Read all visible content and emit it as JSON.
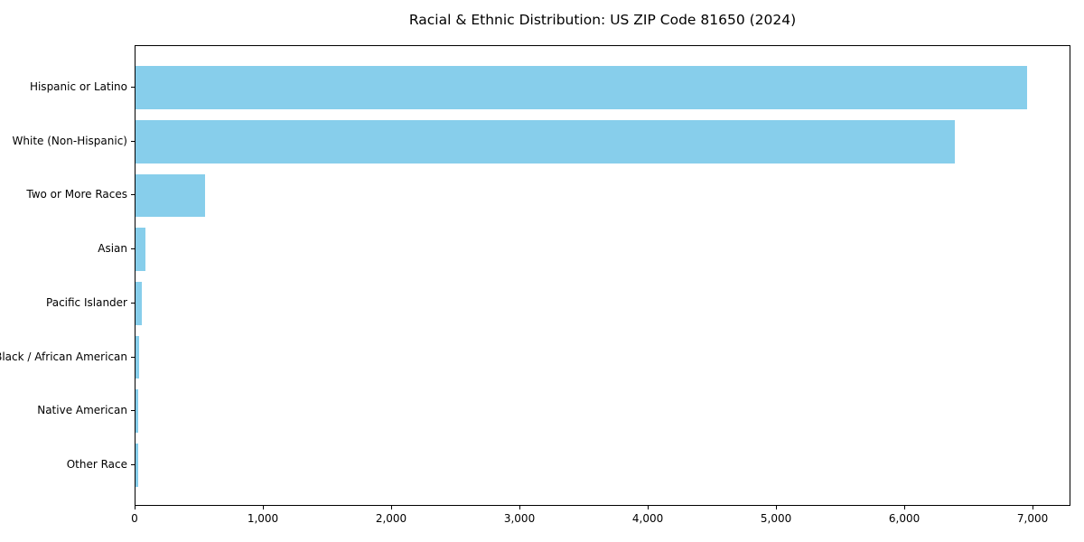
{
  "title": "Racial & Ethnic Distribution: US ZIP Code 81650 (2024)",
  "chart_data": {
    "type": "bar",
    "orientation": "horizontal",
    "title": "Racial & Ethnic Distribution: US ZIP Code 81650 (2024)",
    "categories": [
      "Hispanic or Latino",
      "White (Non-Hispanic)",
      "Two or More Races",
      "Asian",
      "Pacific Islander",
      "Black / African American",
      "Native American",
      "Other Race"
    ],
    "values": [
      6948,
      6390,
      545,
      75,
      52,
      26,
      24,
      22
    ],
    "xlabel": "",
    "ylabel": "",
    "xlim": [
      0,
      7295
    ],
    "x_ticks": [
      0,
      1000,
      2000,
      3000,
      4000,
      5000,
      6000,
      7000
    ],
    "x_tick_labels": [
      "0",
      "1,000",
      "2,000",
      "3,000",
      "4,000",
      "5,000",
      "6,000",
      "7,000"
    ],
    "bar_color": "#87CEEB",
    "background_color": "#FFFFFF",
    "text_color": "#000000",
    "grid": false,
    "legend": null
  }
}
